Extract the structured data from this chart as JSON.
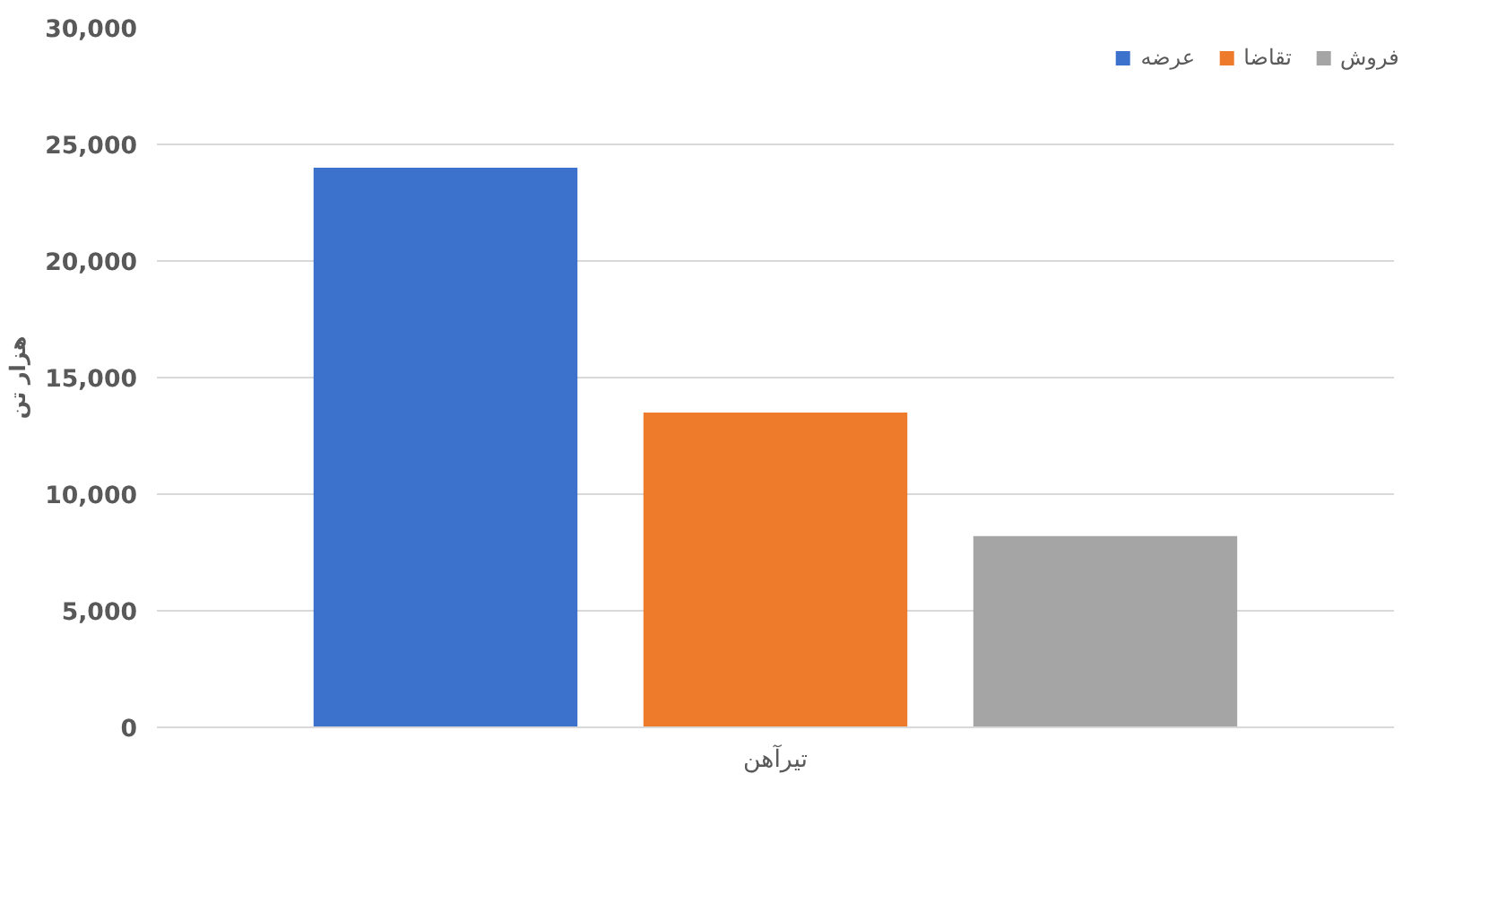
{
  "chart_data": {
    "type": "bar",
    "ylabel": "هزار تن",
    "categories": [
      "تیرآهن"
    ],
    "series": [
      {
        "name": "عرضه",
        "color": "#3d72cc",
        "values": [
          24000
        ]
      },
      {
        "name": "تقاضا",
        "color": "#ee7b2c",
        "values": [
          13500
        ]
      },
      {
        "name": "فروش",
        "color": "#a5a5a5",
        "values": [
          8200
        ]
      }
    ],
    "ylim": [
      0,
      30000
    ],
    "yticks": [
      {
        "value": 0,
        "label": "0"
      },
      {
        "value": 5000,
        "label": "5,000"
      },
      {
        "value": 10000,
        "label": "10,000"
      },
      {
        "value": 15000,
        "label": "15,000"
      },
      {
        "value": 20000,
        "label": "20,000"
      },
      {
        "value": 25000,
        "label": "25,000"
      },
      {
        "value": 30000,
        "label": "30,000"
      }
    ],
    "grid": "y",
    "legend": "top right"
  }
}
